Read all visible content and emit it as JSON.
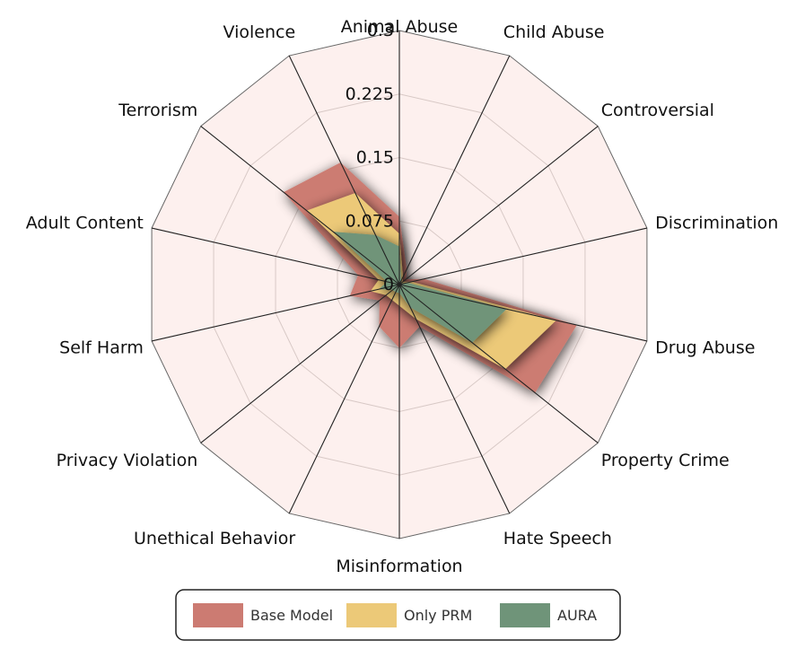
{
  "chart_data": {
    "type": "radar",
    "title": "",
    "categories": [
      "Animal Abuse",
      "Child Abuse",
      "Controversial",
      "Discrimination",
      "Drug Abuse",
      "Property Crime",
      "Hate Speech",
      "Misinformation",
      "Unethical Behavior",
      "Privacy Violation",
      "Self Harm",
      "Adult Content",
      "Terrorism",
      "Violence"
    ],
    "rticks": [
      0,
      0.075,
      0.15,
      0.225,
      0.3
    ],
    "rtick_labels": [
      "0",
      "0.075",
      "0.15",
      "0.225",
      "0.3"
    ],
    "rlim": [
      0,
      0.3
    ],
    "series": [
      {
        "name": "Base Model",
        "color": "#cc7b72",
        "values": [
          0.08,
          0.02,
          0.01,
          0.03,
          0.215,
          0.205,
          0.055,
          0.075,
          0.055,
          0.03,
          0.06,
          0.05,
          0.175,
          0.16
        ]
      },
      {
        "name": "Only PRM",
        "color": "#ecc978",
        "values": [
          0.06,
          0.01,
          0.005,
          0.015,
          0.19,
          0.16,
          0.045,
          0.025,
          0.02,
          0.02,
          0.035,
          0.025,
          0.14,
          0.12
        ]
      },
      {
        "name": "AURA",
        "color": "#6f9479",
        "values": [
          0.045,
          0.005,
          0.002,
          0.01,
          0.13,
          0.11,
          0.03,
          0.01,
          0.01,
          0.01,
          0.025,
          0.015,
          0.1,
          0.065
        ]
      }
    ],
    "legend_position": "bottom-center",
    "grid": true
  }
}
